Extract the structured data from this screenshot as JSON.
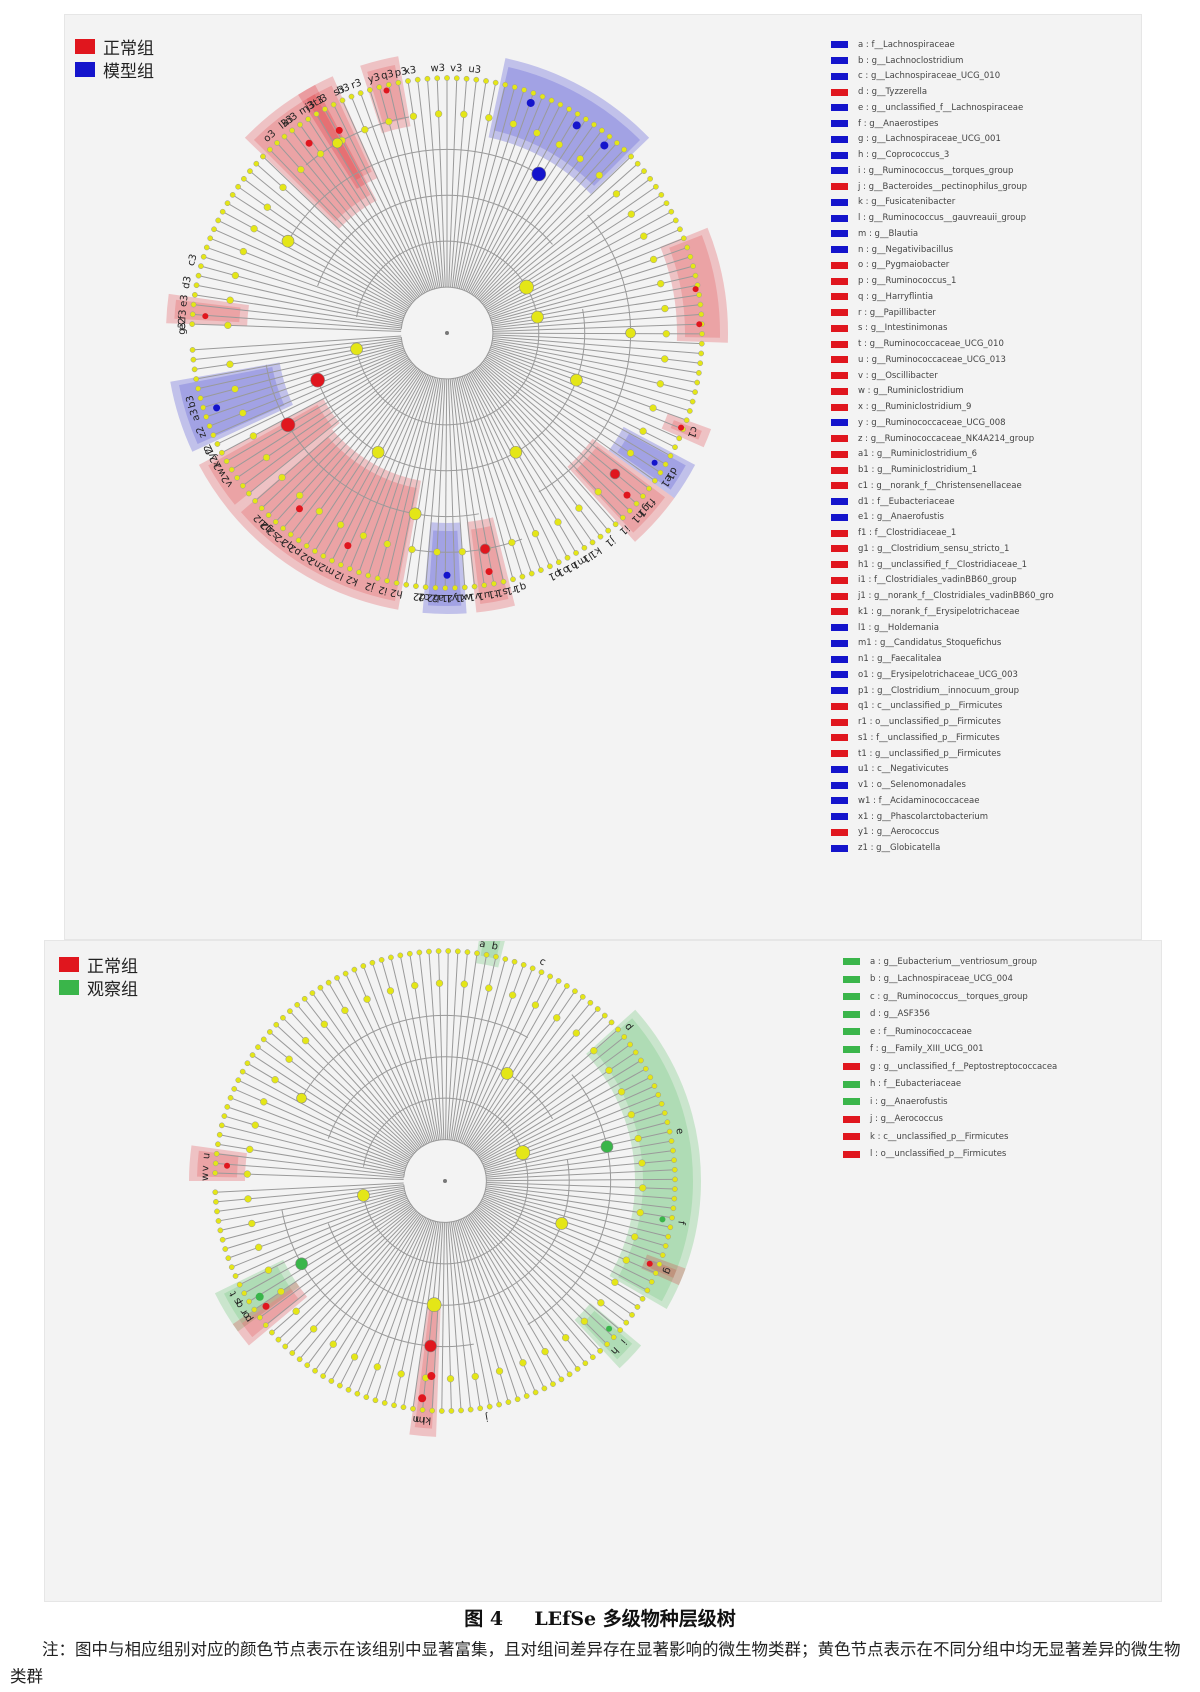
{
  "figure1": {
    "group_legend": [
      {
        "label": "正常组",
        "color": "#e0161e"
      },
      {
        "label": "模型组",
        "color": "#1414cc"
      }
    ],
    "clades": [
      {
        "code": "a",
        "name": "a : f__Lachnospiraceae",
        "group": "model"
      },
      {
        "code": "b",
        "name": "b : g__Lachnoclostridium",
        "group": "model"
      },
      {
        "code": "c",
        "name": "c : g__Lachnospiraceae_UCG_010",
        "group": "model"
      },
      {
        "code": "d",
        "name": "d : g__Tyzzerella",
        "group": "normal"
      },
      {
        "code": "e",
        "name": "e : g__unclassified_f__Lachnospiraceae",
        "group": "model"
      },
      {
        "code": "f",
        "name": "f : g__Anaerostipes",
        "group": "model"
      },
      {
        "code": "g",
        "name": "g : g__Lachnospiraceae_UCG_001",
        "group": "model"
      },
      {
        "code": "h",
        "name": "h : g__Coprococcus_3",
        "group": "model"
      },
      {
        "code": "i",
        "name": "i : g__Ruminococcus__torques_group",
        "group": "model"
      },
      {
        "code": "j",
        "name": "j : g__Bacteroides__pectinophilus_group",
        "group": "normal"
      },
      {
        "code": "k",
        "name": "k : g__Fusicatenibacter",
        "group": "model"
      },
      {
        "code": "l",
        "name": "l : g__Ruminococcus__gauvreauii_group",
        "group": "model"
      },
      {
        "code": "m",
        "name": "m : g__Blautia",
        "group": "model"
      },
      {
        "code": "n",
        "name": "n : g__Negativibacillus",
        "group": "model"
      },
      {
        "code": "o",
        "name": "o : g__Pygmaiobacter",
        "group": "normal"
      },
      {
        "code": "p",
        "name": "p : g__Ruminococcus_1",
        "group": "normal"
      },
      {
        "code": "q",
        "name": "q : g__Harryflintia",
        "group": "normal"
      },
      {
        "code": "r",
        "name": "r : g__Papillibacter",
        "group": "normal"
      },
      {
        "code": "s",
        "name": "s : g__Intestinimonas",
        "group": "normal"
      },
      {
        "code": "t",
        "name": "t : g__Ruminococcaceae_UCG_010",
        "group": "normal"
      },
      {
        "code": "u",
        "name": "u : g__Ruminococcaceae_UCG_013",
        "group": "normal"
      },
      {
        "code": "v",
        "name": "v : g__Oscillibacter",
        "group": "normal"
      },
      {
        "code": "w",
        "name": "w : g__Ruminiclostridium",
        "group": "normal"
      },
      {
        "code": "x",
        "name": "x : g__Ruminiclostridium_9",
        "group": "normal"
      },
      {
        "code": "y",
        "name": "y : g__Ruminococcaceae_UCG_008",
        "group": "model"
      },
      {
        "code": "z",
        "name": "z : g__Ruminococcaceae_NK4A214_group",
        "group": "normal"
      },
      {
        "code": "a1",
        "name": "a1 : g__Ruminiclostridium_6",
        "group": "normal"
      },
      {
        "code": "b1",
        "name": "b1 : g__Ruminiclostridium_1",
        "group": "normal"
      },
      {
        "code": "c1",
        "name": "c1 : g__norank_f__Christensenellaceae",
        "group": "normal"
      },
      {
        "code": "d1",
        "name": "d1 : f__Eubacteriaceae",
        "group": "model"
      },
      {
        "code": "e1",
        "name": "e1 : g__Anaerofustis",
        "group": "model"
      },
      {
        "code": "f1",
        "name": "f1 : f__Clostridiaceae_1",
        "group": "normal"
      },
      {
        "code": "g1",
        "name": "g1 : g__Clostridium_sensu_stricto_1",
        "group": "normal"
      },
      {
        "code": "h1",
        "name": "h1 : g__unclassified_f__Clostridiaceae_1",
        "group": "normal"
      },
      {
        "code": "i1",
        "name": "i1 : f__Clostridiales_vadinBB60_group",
        "group": "normal"
      },
      {
        "code": "j1",
        "name": "j1 : g__norank_f__Clostridiales_vadinBB60_gro",
        "group": "normal"
      },
      {
        "code": "k1",
        "name": "k1 : g__norank_f__Erysipelotrichaceae",
        "group": "normal"
      },
      {
        "code": "l1",
        "name": "l1 : g__Holdemania",
        "group": "model"
      },
      {
        "code": "m1",
        "name": "m1 : g__Candidatus_Stoquefichus",
        "group": "model"
      },
      {
        "code": "n1",
        "name": "n1 : g__Faecalitalea",
        "group": "model"
      },
      {
        "code": "o1",
        "name": "o1 : g__Erysipelotrichaceae_UCG_003",
        "group": "model"
      },
      {
        "code": "p1",
        "name": "p1 : g__Clostridium__innocuum_group",
        "group": "model"
      },
      {
        "code": "q1",
        "name": "q1 : c__unclassified_p__Firmicutes",
        "group": "normal"
      },
      {
        "code": "r1",
        "name": "r1 : o__unclassified_p__Firmicutes",
        "group": "normal"
      },
      {
        "code": "s1",
        "name": "s1 : f__unclassified_p__Firmicutes",
        "group": "normal"
      },
      {
        "code": "t1",
        "name": "t1 : g__unclassified_p__Firmicutes",
        "group": "normal"
      },
      {
        "code": "u1",
        "name": "u1 : c__Negativicutes",
        "group": "model"
      },
      {
        "code": "v1",
        "name": "v1 : o__Selenomonadales",
        "group": "model"
      },
      {
        "code": "w1",
        "name": "w1 : f__Acidaminococcaceae",
        "group": "model"
      },
      {
        "code": "x1",
        "name": "x1 : g__Phascolarctobacterium",
        "group": "model"
      },
      {
        "code": "y1",
        "name": "y1 : g__Aerococcus",
        "group": "normal"
      },
      {
        "code": "z1",
        "name": "z1 : g__Globicatella",
        "group": "model"
      }
    ],
    "tree_labels": [
      {
        "code": "y3",
        "angle": -106
      },
      {
        "code": "x3",
        "angle": -98
      },
      {
        "code": "w3",
        "angle": -92
      },
      {
        "code": "v3",
        "angle": -88
      },
      {
        "code": "u3",
        "angle": -84
      },
      {
        "code": "t3",
        "angle": -119
      },
      {
        "code": "s3",
        "angle": -114
      },
      {
        "code": "r3",
        "angle": -110
      },
      {
        "code": "q3",
        "angle": -103
      },
      {
        "code": "p3",
        "angle": -100
      },
      {
        "code": "o3",
        "angle": -132
      },
      {
        "code": "n3",
        "angle": -126
      },
      {
        "code": "m3",
        "angle": -122
      },
      {
        "code": "l3",
        "angle": -128
      },
      {
        "code": "k3",
        "angle": -127
      },
      {
        "code": "j3",
        "angle": -121
      },
      {
        "code": "i3",
        "angle": -118
      },
      {
        "code": "h3",
        "angle": -113
      },
      {
        "code": "g3",
        "angle": -179
      },
      {
        "code": "f3",
        "angle": -176
      },
      {
        "code": "e3",
        "angle": -173
      },
      {
        "code": "d3",
        "angle": -169
      },
      {
        "code": "c3",
        "angle": -164
      },
      {
        "code": "b3",
        "angle": 165
      },
      {
        "code": "a3",
        "angle": 162
      },
      {
        "code": "z2",
        "angle": 158
      },
      {
        "code": "y2",
        "angle": 153
      },
      {
        "code": "x2",
        "angle": 151
      },
      {
        "code": "w2",
        "angle": 149
      },
      {
        "code": "v2",
        "angle": 146
      },
      {
        "code": "u2",
        "angle": 135
      },
      {
        "code": "t2",
        "angle": 133
      },
      {
        "code": "s2",
        "angle": 131
      },
      {
        "code": "r2",
        "angle": 129
      },
      {
        "code": "q2",
        "angle": 127
      },
      {
        "code": "p2",
        "angle": 125
      },
      {
        "code": "o2",
        "angle": 122
      },
      {
        "code": "n2",
        "angle": 120
      },
      {
        "code": "m2",
        "angle": 117
      },
      {
        "code": "l2",
        "angle": 114
      },
      {
        "code": "k2",
        "angle": 111
      },
      {
        "code": "j2",
        "angle": 107
      },
      {
        "code": "i2",
        "angle": 104
      },
      {
        "code": "h2",
        "angle": 101
      },
      {
        "code": "g2",
        "angle": 133
      },
      {
        "code": "f2",
        "angle": 154
      },
      {
        "code": "e2",
        "angle": -178
      },
      {
        "code": "d2",
        "angle": 96
      },
      {
        "code": "c2",
        "angle": 95
      },
      {
        "code": "b2",
        "angle": 93
      },
      {
        "code": "a2",
        "angle": 92
      },
      {
        "code": "z1",
        "angle": 90
      },
      {
        "code": "y1",
        "angle": 89
      },
      {
        "code": "x1",
        "angle": 87
      },
      {
        "code": "w1",
        "angle": 86
      },
      {
        "code": "v1",
        "angle": 84
      },
      {
        "code": "u1",
        "angle": 82
      },
      {
        "code": "t1",
        "angle": 80
      },
      {
        "code": "s1",
        "angle": 78
      },
      {
        "code": "r1",
        "angle": 76
      },
      {
        "code": "q1",
        "angle": 74
      },
      {
        "code": "p1",
        "angle": 66
      },
      {
        "code": "o1",
        "angle": 64
      },
      {
        "code": "n1",
        "angle": 62
      },
      {
        "code": "m1",
        "angle": 60
      },
      {
        "code": "l1",
        "angle": 58
      },
      {
        "code": "k1",
        "angle": 56
      },
      {
        "code": "j1",
        "angle": 52
      },
      {
        "code": "i1",
        "angle": 48
      },
      {
        "code": "h1",
        "angle": 44
      },
      {
        "code": "g1",
        "angle": 42
      },
      {
        "code": "f1",
        "angle": 40
      },
      {
        "code": "e1",
        "angle": 34
      },
      {
        "code": "d1",
        "angle": 32
      },
      {
        "code": "c1",
        "angle": 22
      }
    ]
  },
  "figure2": {
    "group_legend": [
      {
        "label": "正常组",
        "color": "#e0161e"
      },
      {
        "label": "观察组",
        "color": "#3ab54a"
      }
    ],
    "clades": [
      {
        "code": "a",
        "name": "a : g__Eubacterium__ventriosum_group",
        "group": "observe"
      },
      {
        "code": "b",
        "name": "b : g__Lachnospiraceae_UCG_004",
        "group": "observe"
      },
      {
        "code": "c",
        "name": "c : g__Ruminococcus__torques_group",
        "group": "observe"
      },
      {
        "code": "d",
        "name": "d : g__ASF356",
        "group": "observe"
      },
      {
        "code": "e",
        "name": "e : f__Ruminococcaceae",
        "group": "observe"
      },
      {
        "code": "f",
        "name": "f : g__Family_XIII_UCG_001",
        "group": "observe"
      },
      {
        "code": "g",
        "name": "g : g__unclassified_f__Peptostreptococcacea",
        "group": "normal"
      },
      {
        "code": "h",
        "name": "h : f__Eubacteriaceae",
        "group": "observe"
      },
      {
        "code": "i",
        "name": "i : g__Anaerofustis",
        "group": "observe"
      },
      {
        "code": "j",
        "name": "j : g__Aerococcus",
        "group": "normal"
      },
      {
        "code": "k",
        "name": "k : c__unclassified_p__Firmicutes",
        "group": "normal"
      },
      {
        "code": "l",
        "name": "l : o__unclassified_p__Firmicutes",
        "group": "normal"
      }
    ],
    "tree_labels": [
      {
        "code": "w",
        "angle": -179
      },
      {
        "code": "v",
        "angle": -177
      },
      {
        "code": "u",
        "angle": -174
      },
      {
        "code": "t",
        "angle": 152
      },
      {
        "code": "s",
        "angle": 150
      },
      {
        "code": "r",
        "angle": 147
      },
      {
        "code": "q",
        "angle": 149
      },
      {
        "code": "p",
        "angle": 145
      },
      {
        "code": "o",
        "angle": 146
      },
      {
        "code": "n",
        "angle": 97
      },
      {
        "code": "m",
        "angle": 96
      },
      {
        "code": "l",
        "angle": 95
      },
      {
        "code": "k",
        "angle": 94
      },
      {
        "code": "j",
        "angle": 80
      },
      {
        "code": "i",
        "angle": 42
      },
      {
        "code": "h",
        "angle": 45
      },
      {
        "code": "g",
        "angle": 22
      },
      {
        "code": "f",
        "angle": 10
      },
      {
        "code": "e",
        "angle": -12
      },
      {
        "code": "d",
        "angle": -40
      },
      {
        "code": "c",
        "angle": -66
      },
      {
        "code": "b",
        "angle": -78
      },
      {
        "code": "a",
        "angle": -81
      }
    ]
  },
  "colors": {
    "normal": "#e0161e",
    "model": "#1414cc",
    "observe": "#3ab54a",
    "neutral": "#e4e617",
    "branch": "#9a9a9a"
  },
  "caption": {
    "figure_number": "图 4",
    "figure_title": "LEfSe 多级物种层级树",
    "note": "注：图中与相应组别对应的颜色节点表示在该组别中显著富集，且对组间差异存在显著影响的微生物类群；黄色节点表示在不同分组中均无显著差异的微生物类群"
  }
}
